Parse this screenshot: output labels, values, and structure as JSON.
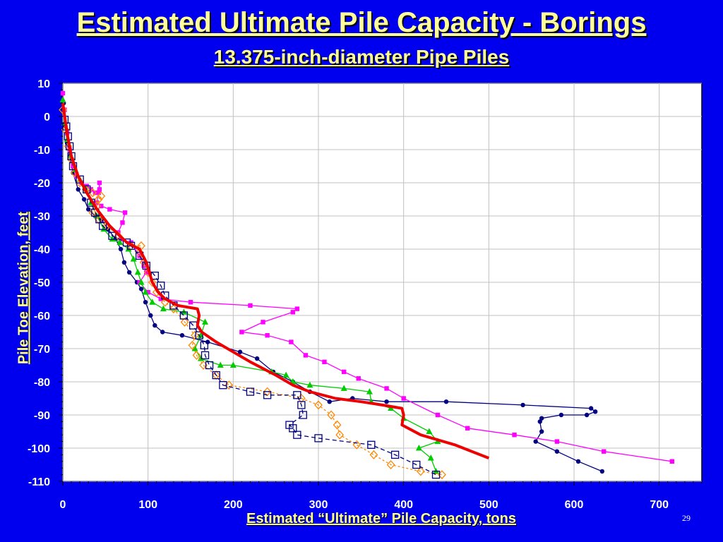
{
  "slide": {
    "title": "Estimated Ultimate Pile Capacity - Borings",
    "subtitle": "13.375-inch-diameter Pipe Piles",
    "page_number": "29"
  },
  "colors": {
    "background": "#0000ee",
    "title_text": "#ffff99",
    "plot_area": "#ffffff",
    "grid": "#c0c0c0"
  },
  "chart_data": {
    "type": "line",
    "title": "",
    "xlabel": "Estimated “Ultimate” Pile Capacity, tons",
    "ylabel": "Pile Toe Elevation, feet",
    "xlim": [
      0,
      750
    ],
    "ylim": [
      -110,
      10
    ],
    "x_ticks": [
      0,
      100,
      200,
      300,
      400,
      500,
      600,
      700
    ],
    "y_ticks": [
      10,
      0,
      -10,
      -20,
      -30,
      -40,
      -50,
      -60,
      -70,
      -80,
      -90,
      -100,
      -110
    ],
    "grid": true,
    "legend": "none",
    "series": [
      {
        "color": "#000080",
        "marker": "circle",
        "dash": "",
        "points": [
          [
            1,
            4
          ],
          [
            3,
            -3
          ],
          [
            5,
            -8
          ],
          [
            8,
            -12
          ],
          [
            12,
            -17
          ],
          [
            18,
            -22
          ],
          [
            25,
            -25
          ],
          [
            30,
            -28
          ],
          [
            38,
            -30
          ],
          [
            45,
            -31
          ],
          [
            53,
            -34
          ],
          [
            62,
            -37
          ],
          [
            68,
            -40
          ],
          [
            72,
            -44
          ],
          [
            78,
            -47
          ],
          [
            87,
            -50
          ],
          [
            92,
            -52
          ],
          [
            97,
            -56
          ],
          [
            103,
            -60
          ],
          [
            108,
            -63
          ],
          [
            117,
            -65
          ],
          [
            140,
            -66
          ],
          [
            170,
            -68
          ],
          [
            208,
            -71
          ],
          [
            228,
            -73
          ],
          [
            247,
            -77
          ],
          [
            270,
            -80
          ],
          [
            290,
            -83
          ],
          [
            313,
            -86
          ],
          [
            340,
            -85
          ],
          [
            380,
            -86
          ],
          [
            450,
            -86
          ],
          [
            540,
            -87
          ],
          [
            620,
            -88
          ],
          [
            625,
            -89
          ],
          [
            615,
            -90
          ],
          [
            585,
            -90
          ],
          [
            562,
            -91
          ],
          [
            560,
            -92
          ],
          [
            562,
            -95
          ],
          [
            555,
            -98
          ],
          [
            580,
            -101
          ],
          [
            605,
            -104
          ],
          [
            633,
            -107
          ]
        ]
      },
      {
        "color": "#ff00ff",
        "marker": "square",
        "dash": "",
        "points": [
          [
            0,
            7
          ],
          [
            2,
            2
          ],
          [
            5,
            -5
          ],
          [
            8,
            -10
          ],
          [
            12,
            -15
          ],
          [
            16,
            -18
          ],
          [
            22,
            -20
          ],
          [
            28,
            -21
          ],
          [
            33,
            -22
          ],
          [
            38,
            -23
          ],
          [
            43,
            -22
          ],
          [
            43,
            -20
          ],
          [
            42,
            -23
          ],
          [
            40,
            -26
          ],
          [
            45,
            -27
          ],
          [
            55,
            -28
          ],
          [
            73,
            -29
          ],
          [
            70,
            -32
          ],
          [
            65,
            -35
          ],
          [
            68,
            -37
          ],
          [
            80,
            -38
          ],
          [
            90,
            -42
          ],
          [
            95,
            -45
          ],
          [
            98,
            -47
          ],
          [
            90,
            -50
          ],
          [
            100,
            -53
          ],
          [
            115,
            -55
          ],
          [
            150,
            -56
          ],
          [
            220,
            -57
          ],
          [
            275,
            -58
          ],
          [
            270,
            -59
          ],
          [
            235,
            -62
          ],
          [
            210,
            -65
          ],
          [
            240,
            -66
          ],
          [
            268,
            -68
          ],
          [
            285,
            -72
          ],
          [
            307,
            -74
          ],
          [
            330,
            -77
          ],
          [
            347,
            -79
          ],
          [
            380,
            -82
          ],
          [
            400,
            -85
          ],
          [
            440,
            -90
          ],
          [
            475,
            -94
          ],
          [
            530,
            -96
          ],
          [
            580,
            -98
          ],
          [
            635,
            -101
          ],
          [
            715,
            -104
          ]
        ]
      },
      {
        "color": "#00cc00",
        "marker": "triangle",
        "dash": "",
        "points": [
          [
            0,
            5
          ],
          [
            2,
            -2
          ],
          [
            5,
            -7
          ],
          [
            9,
            -12
          ],
          [
            14,
            -16
          ],
          [
            20,
            -19
          ],
          [
            27,
            -22
          ],
          [
            33,
            -26
          ],
          [
            40,
            -30
          ],
          [
            48,
            -34
          ],
          [
            58,
            -37
          ],
          [
            67,
            -38
          ],
          [
            77,
            -40
          ],
          [
            83,
            -43
          ],
          [
            88,
            -47
          ],
          [
            92,
            -50
          ],
          [
            97,
            -53
          ],
          [
            105,
            -56
          ],
          [
            118,
            -58
          ],
          [
            142,
            -59
          ],
          [
            167,
            -62
          ],
          [
            162,
            -66
          ],
          [
            155,
            -70
          ],
          [
            162,
            -73
          ],
          [
            185,
            -75
          ],
          [
            200,
            -75
          ],
          [
            245,
            -77
          ],
          [
            262,
            -78
          ],
          [
            270,
            -80
          ],
          [
            290,
            -81
          ],
          [
            330,
            -82
          ],
          [
            360,
            -83
          ],
          [
            362,
            -86
          ],
          [
            385,
            -88
          ],
          [
            400,
            -91
          ],
          [
            430,
            -95
          ],
          [
            440,
            -98
          ],
          [
            418,
            -100
          ],
          [
            432,
            -103
          ],
          [
            438,
            -107
          ]
        ]
      },
      {
        "color": "#ff8800",
        "marker": "diamond",
        "dash": "3,3",
        "points": [
          [
            0,
            2
          ],
          [
            3,
            -4
          ],
          [
            6,
            -9
          ],
          [
            10,
            -13
          ],
          [
            14,
            -17
          ],
          [
            20,
            -20
          ],
          [
            27,
            -22
          ],
          [
            35,
            -23
          ],
          [
            42,
            -25
          ],
          [
            45,
            -24
          ],
          [
            40,
            -27
          ],
          [
            35,
            -29
          ],
          [
            42,
            -31
          ],
          [
            52,
            -33
          ],
          [
            65,
            -36
          ],
          [
            80,
            -39
          ],
          [
            92,
            -39
          ],
          [
            90,
            -41
          ],
          [
            95,
            -44
          ],
          [
            100,
            -47
          ],
          [
            105,
            -50
          ],
          [
            110,
            -53
          ],
          [
            120,
            -56
          ],
          [
            130,
            -58
          ],
          [
            143,
            -62
          ],
          [
            155,
            -66
          ],
          [
            152,
            -69
          ],
          [
            157,
            -72
          ],
          [
            165,
            -75
          ],
          [
            180,
            -78
          ],
          [
            195,
            -81
          ],
          [
            240,
            -83
          ],
          [
            280,
            -85
          ],
          [
            300,
            -87
          ],
          [
            315,
            -90
          ],
          [
            322,
            -93
          ],
          [
            325,
            -96
          ],
          [
            345,
            -99
          ],
          [
            365,
            -102
          ],
          [
            385,
            -105
          ],
          [
            420,
            -107
          ],
          [
            445,
            -108
          ]
        ]
      },
      {
        "color": "#000080",
        "marker": "open-square",
        "dash": "6,4",
        "points": [
          [
            2,
            -1
          ],
          [
            4,
            -3
          ],
          [
            6,
            -6
          ],
          [
            8,
            -9
          ],
          [
            10,
            -12
          ],
          [
            12,
            -15
          ],
          [
            20,
            -19
          ],
          [
            28,
            -22
          ],
          [
            33,
            -26
          ],
          [
            38,
            -29
          ],
          [
            43,
            -31
          ],
          [
            47,
            -33
          ],
          [
            58,
            -36
          ],
          [
            75,
            -38
          ],
          [
            80,
            -39
          ],
          [
            90,
            -42
          ],
          [
            98,
            -45
          ],
          [
            108,
            -48
          ],
          [
            115,
            -51
          ],
          [
            120,
            -54
          ],
          [
            130,
            -57
          ],
          [
            142,
            -60
          ],
          [
            153,
            -63
          ],
          [
            160,
            -66
          ],
          [
            166,
            -69
          ],
          [
            167,
            -72
          ],
          [
            172,
            -75
          ],
          [
            180,
            -78
          ],
          [
            188,
            -81
          ],
          [
            220,
            -83
          ],
          [
            240,
            -84
          ],
          [
            275,
            -84
          ],
          [
            280,
            -87
          ],
          [
            282,
            -90
          ],
          [
            266,
            -93
          ],
          [
            270,
            -94
          ],
          [
            275,
            -96
          ],
          [
            300,
            -97
          ],
          [
            362,
            -99
          ],
          [
            390,
            -102
          ],
          [
            415,
            -105
          ],
          [
            438,
            -108
          ]
        ]
      },
      {
        "color": "#ee0000",
        "marker": "none",
        "dash": "",
        "width": 4,
        "points": [
          [
            0,
            4
          ],
          [
            5,
            -5
          ],
          [
            10,
            -12
          ],
          [
            18,
            -18
          ],
          [
            28,
            -23
          ],
          [
            40,
            -28
          ],
          [
            55,
            -33
          ],
          [
            75,
            -38
          ],
          [
            90,
            -40
          ],
          [
            98,
            -44
          ],
          [
            105,
            -50
          ],
          [
            112,
            -53
          ],
          [
            120,
            -55
          ],
          [
            135,
            -57
          ],
          [
            158,
            -58
          ],
          [
            160,
            -60
          ],
          [
            158,
            -63
          ],
          [
            163,
            -65
          ],
          [
            180,
            -68
          ],
          [
            200,
            -71
          ],
          [
            220,
            -74
          ],
          [
            250,
            -78
          ],
          [
            270,
            -81
          ],
          [
            290,
            -83
          ],
          [
            320,
            -85
          ],
          [
            350,
            -86
          ],
          [
            375,
            -87
          ],
          [
            398,
            -88
          ],
          [
            400,
            -90
          ],
          [
            398,
            -93
          ],
          [
            420,
            -96
          ],
          [
            460,
            -99
          ],
          [
            500,
            -103
          ]
        ]
      }
    ]
  }
}
